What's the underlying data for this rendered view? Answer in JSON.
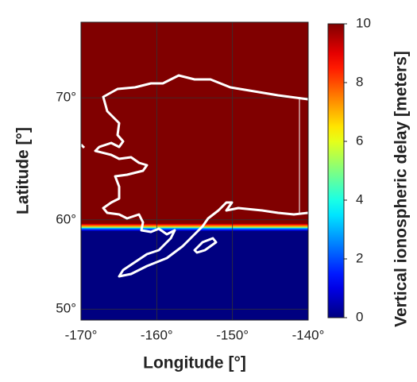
{
  "chart_data": {
    "type": "heatmap",
    "projection": "mercator",
    "colormap": "jet",
    "x_label": "Longitude [°]",
    "y_label": "Latitude [°]",
    "colorbar_label": "Vertical ionospheric delay [meters]",
    "xlim": [
      -170,
      -140
    ],
    "xticks": [
      {
        "value": -170,
        "label": "-170°"
      },
      {
        "value": -160,
        "label": "-160°"
      },
      {
        "value": -150,
        "label": "-150°"
      },
      {
        "value": -140,
        "label": "-140°"
      }
    ],
    "ylim": [
      48.6,
      74.5
    ],
    "yticks": [
      {
        "value": 50,
        "label": "50°"
      },
      {
        "value": 60,
        "label": "60°"
      },
      {
        "value": 70,
        "label": "70°"
      }
    ],
    "y_edges": [
      74.5,
      59.6,
      59.5,
      59.4,
      59.3,
      59.2,
      59.1,
      59.0,
      58.9,
      48.6
    ],
    "values": [
      10,
      9,
      8,
      7,
      5,
      3,
      2,
      1,
      0
    ],
    "clim": [
      0,
      10
    ],
    "cticks": [
      0,
      2,
      4,
      6,
      8,
      10
    ],
    "grid": true,
    "grid_color": "#333333"
  }
}
